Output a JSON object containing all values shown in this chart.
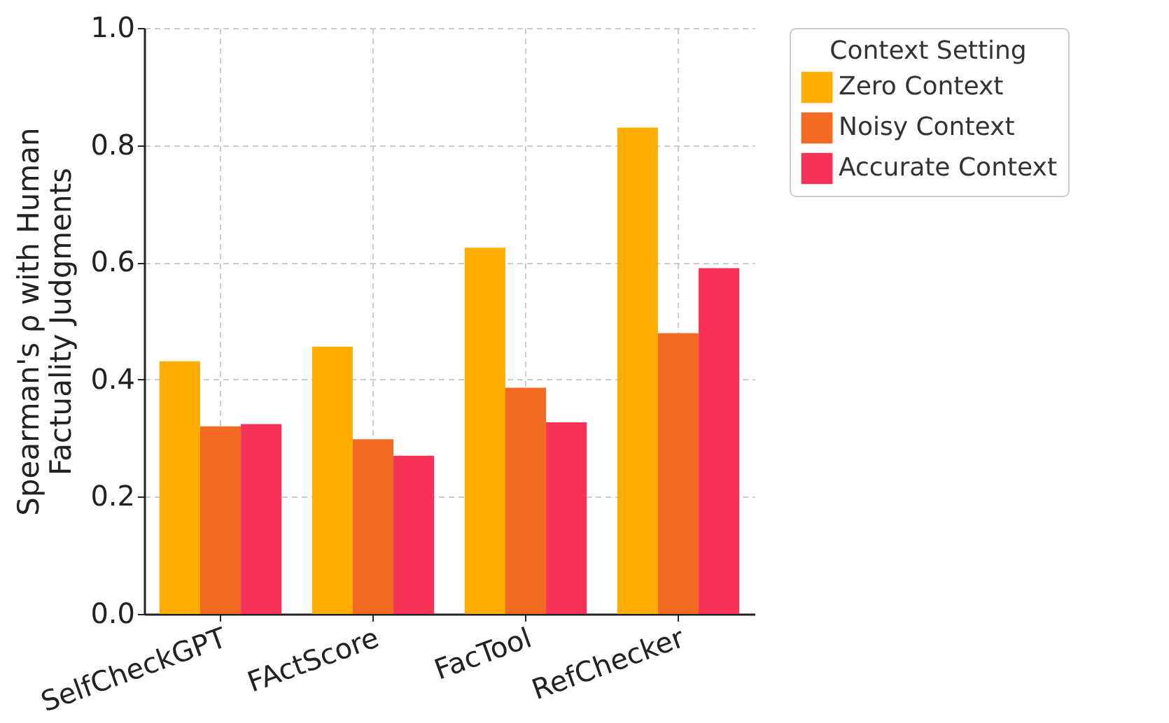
{
  "chart_data": {
    "type": "bar",
    "ylabel": "Spearman's ρ with Human\nFactuality Judgments",
    "legend_title": "Context Setting",
    "categories": [
      "SelfCheckGPT",
      "FActScore",
      "FacTool",
      "RefChecker"
    ],
    "series": [
      {
        "name": "Zero Context",
        "color": "#ffad00",
        "values": [
          0.431,
          0.456,
          0.625,
          0.83
        ]
      },
      {
        "name": "Noisy Context",
        "color": "#f36a23",
        "values": [
          0.32,
          0.298,
          0.386,
          0.479
        ]
      },
      {
        "name": "Accurate Context",
        "color": "#f63356",
        "values": [
          0.324,
          0.27,
          0.327,
          0.59
        ]
      }
    ],
    "ylim": [
      0,
      1.0
    ],
    "yticks": [
      {
        "value": 0,
        "label": "0.0"
      },
      {
        "value": 0.2,
        "label": "0.2"
      },
      {
        "value": 0.4,
        "label": "0.4"
      },
      {
        "value": 0.6,
        "label": "0.6"
      },
      {
        "value": 0.8,
        "label": "0.8"
      },
      {
        "value": 1.0,
        "label": "1.0"
      }
    ],
    "grid": true,
    "legend": "top right"
  }
}
